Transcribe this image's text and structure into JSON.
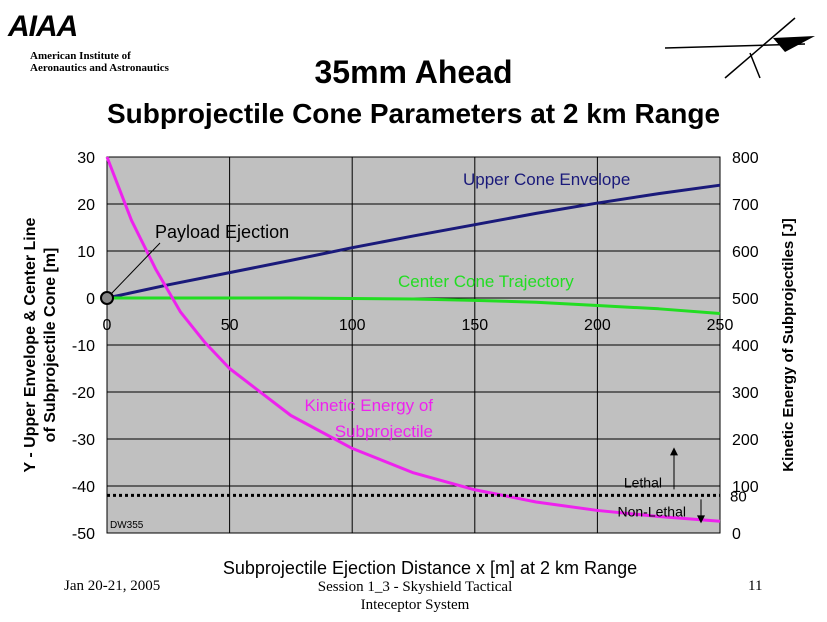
{
  "header": {
    "logo_text": "AIAA",
    "org_line1": "American Institute of",
    "org_line2": "Aeronautics and Astronautics",
    "title": "35mm Ahead",
    "subtitle": "Subprojectile Cone Parameters at 2 km Range"
  },
  "chart_data": {
    "type": "line",
    "xlabel": "Subprojectile Ejection Distance x [m] at 2 km Range",
    "ylabel_left_line1": "Y - Upper Envelope & Center Line",
    "ylabel_left_line2": "of Subprojectile Cone [m]",
    "ylabel_right": "Kinetic Energy of Subprojectiles [J]",
    "xlim": [
      0,
      250
    ],
    "ylim_left": [
      -50,
      30
    ],
    "ylim_right": [
      0,
      800
    ],
    "x_ticks": [
      "0",
      "50",
      "100",
      "150",
      "200",
      "250"
    ],
    "y_left_ticks": [
      "30",
      "20",
      "10",
      "0",
      "-10",
      "-20",
      "-30",
      "-40",
      "-50"
    ],
    "y_right_ticks": [
      "800",
      "700",
      "600",
      "500",
      "400",
      "300",
      "200",
      "100",
      "0"
    ],
    "extra_right_tick": "80",
    "grid": true,
    "series": [
      {
        "name": "Upper Cone Envelope",
        "axis": "left",
        "color": "#1a1a7a",
        "x": [
          0,
          25,
          50,
          75,
          100,
          125,
          150,
          175,
          200,
          225,
          250
        ],
        "values": [
          0,
          2.8,
          5.4,
          8.0,
          10.7,
          13.2,
          15.6,
          18.0,
          20.2,
          22.2,
          24.0
        ]
      },
      {
        "name": "Center Cone Trajectory",
        "axis": "left",
        "color": "#22dd22",
        "x": [
          0,
          25,
          50,
          75,
          100,
          125,
          150,
          175,
          200,
          225,
          250
        ],
        "values": [
          0,
          0,
          0,
          0,
          -0.1,
          -0.2,
          -0.5,
          -0.9,
          -1.6,
          -2.3,
          -3.3
        ]
      },
      {
        "name": "Kinetic Energy of Subprojectile",
        "axis": "right",
        "color": "#ee22ee",
        "x": [
          0,
          10,
          20,
          30,
          40,
          50,
          75,
          100,
          125,
          150,
          175,
          200,
          225,
          250
        ],
        "values": [
          800,
          665,
          560,
          470,
          405,
          350,
          250,
          180,
          128,
          92,
          66,
          48,
          35,
          25
        ]
      }
    ],
    "threshold": {
      "label_above": "Lethal",
      "label_below": "Non-Lethal",
      "value": 80,
      "axis": "right"
    },
    "annotations": {
      "payload": "Payload Ejection",
      "upper_label": "Upper Cone Envelope",
      "center_label": "Center Cone Trajectory",
      "ke_label_line1": "Kinetic Energy of",
      "ke_label_line2": "Subprojectile",
      "code": "DW355"
    },
    "colors": {
      "plot_bg": "#c0c0c0",
      "grid": "#000000"
    }
  },
  "footer": {
    "date": "Jan 20-21, 2005",
    "session_line1": "Session 1_3 - Skyshield Tactical",
    "session_line2": "Inteceptor System",
    "page": "11"
  }
}
